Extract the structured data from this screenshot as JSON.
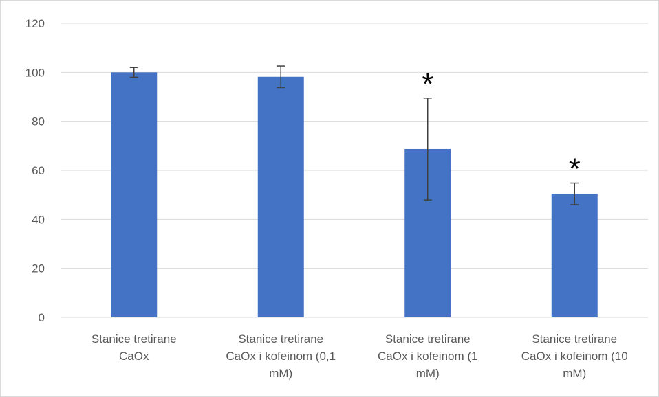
{
  "chart_data": {
    "type": "bar",
    "categories": [
      "Stanice tretirane CaOx",
      "Stanice tretirane CaOx i kofeinom (0,1 mM)",
      "Stanice tretirane CaOx i kofeinom (1 mM)",
      "Stanice tretirane CaOx i kofeinom (10 mM)"
    ],
    "category_label_lines": [
      [
        "Stanice tretirane",
        "CaOx"
      ],
      [
        "Stanice tretirane",
        "CaOx i kofeinom (0,1",
        "mM)"
      ],
      [
        "Stanice tretirane",
        "CaOx i kofeinom (1",
        "mM)"
      ],
      [
        "Stanice tretirane",
        "CaOx i kofeinom (10",
        "mM)"
      ]
    ],
    "values": [
      100,
      98.2,
      68.7,
      50.4
    ],
    "error": [
      2.0,
      4.4,
      20.8,
      4.4
    ],
    "significance": [
      "",
      "",
      "*",
      "*"
    ],
    "ylim": [
      0,
      120
    ],
    "yticks": [
      0,
      20,
      40,
      60,
      80,
      100,
      120
    ],
    "grid": true,
    "title": "",
    "xlabel": "",
    "ylabel": "",
    "colors": {
      "bar": "#4472C4",
      "grid": "#d9d9d9",
      "axis_text": "#595959",
      "error_bar": "#404040"
    }
  }
}
